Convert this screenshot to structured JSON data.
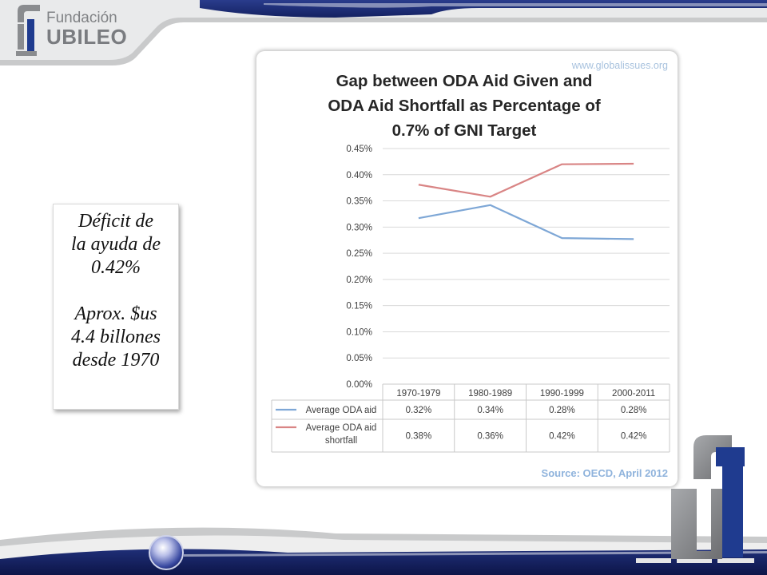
{
  "logo": {
    "line1": "Fundación",
    "line2": "UBILEO"
  },
  "callout": {
    "line1": "Déficit de",
    "line2": "la ayuda de",
    "line3": "0.42%",
    "line4": "Aprox. $us",
    "line5": "4.4 billones",
    "line6": "desde 1970"
  },
  "chart_data": {
    "type": "line",
    "title_lines": [
      "Gap between ODA Aid Given and",
      "ODA Aid Shortfall as Percentage of",
      "0.7% of GNI Target"
    ],
    "watermark": "www.globalissues.org",
    "source": "Source: OECD, April 2012",
    "categories": [
      "1970-1979",
      "1980-1989",
      "1990-1999",
      "2000-2011"
    ],
    "y_ticks": [
      "0.00%",
      "0.05%",
      "0.10%",
      "0.15%",
      "0.20%",
      "0.25%",
      "0.30%",
      "0.35%",
      "0.40%",
      "0.45%"
    ],
    "ylim": [
      0,
      0.45
    ],
    "grid": true,
    "legend": "data-table",
    "series": [
      {
        "name": "Average ODA aid",
        "color": "#7ea7d6",
        "values": [
          0.317,
          0.342,
          0.279,
          0.277
        ],
        "labels": [
          "0.32%",
          "0.34%",
          "0.28%",
          "0.28%"
        ]
      },
      {
        "name_lines": [
          "Average ODA aid",
          "shortfall"
        ],
        "color": "#d98585",
        "values": [
          0.381,
          0.358,
          0.42,
          0.421
        ],
        "labels": [
          "0.38%",
          "0.36%",
          "0.42%",
          "0.42%"
        ]
      }
    ]
  }
}
